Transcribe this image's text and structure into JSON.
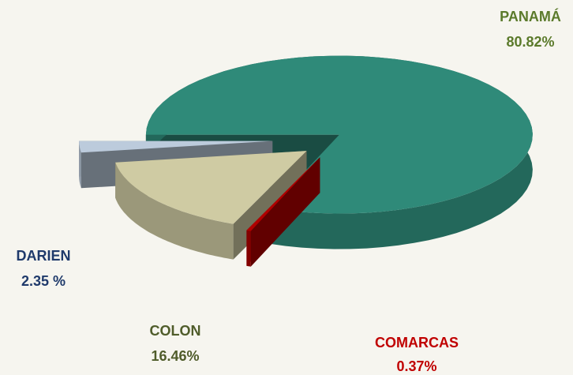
{
  "chart_data": {
    "type": "pie3d",
    "categories": [
      "PANAMÁ",
      "COMARCAS",
      "COLON",
      "DARIEN"
    ],
    "values": [
      80.82,
      0.37,
      16.46,
      2.35
    ],
    "value_labels": [
      "80.82%",
      "0.37%",
      "16.46%",
      "2.35 %"
    ],
    "colors": [
      "#2f8a79",
      "#b00000",
      "#cfcba3",
      "#bccbdc"
    ],
    "label_colors": [
      "#5b7a2b",
      "#c00000",
      "#4f5c2a",
      "#1f3a6b"
    ]
  }
}
